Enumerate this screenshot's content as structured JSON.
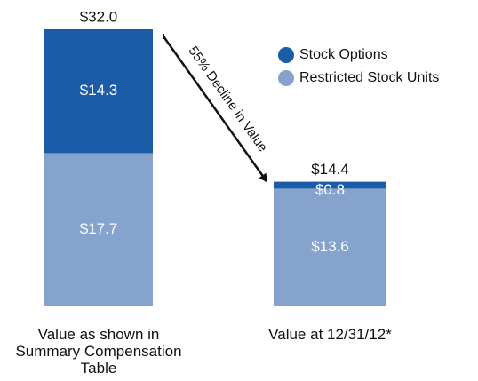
{
  "chart_data": {
    "type": "stacked_bar",
    "categories": [
      "Value as shown in Summary Compensation Table",
      "Value at 12/31/12*"
    ],
    "series": [
      {
        "name": "Restricted Stock Units",
        "color": "#86a3ce",
        "values": [
          17.7,
          13.6
        ],
        "value_labels": [
          "$17.7",
          "$13.6"
        ]
      },
      {
        "name": "Stock Options",
        "color": "#1b5ca8",
        "values": [
          14.3,
          0.8
        ],
        "value_labels": [
          "$14.3",
          "$0.8"
        ]
      }
    ],
    "totals": [
      32.0,
      14.4
    ],
    "total_labels": [
      "$32.0",
      "$14.4"
    ],
    "annotation": "55% Decline in Value",
    "legend": "top-right"
  }
}
